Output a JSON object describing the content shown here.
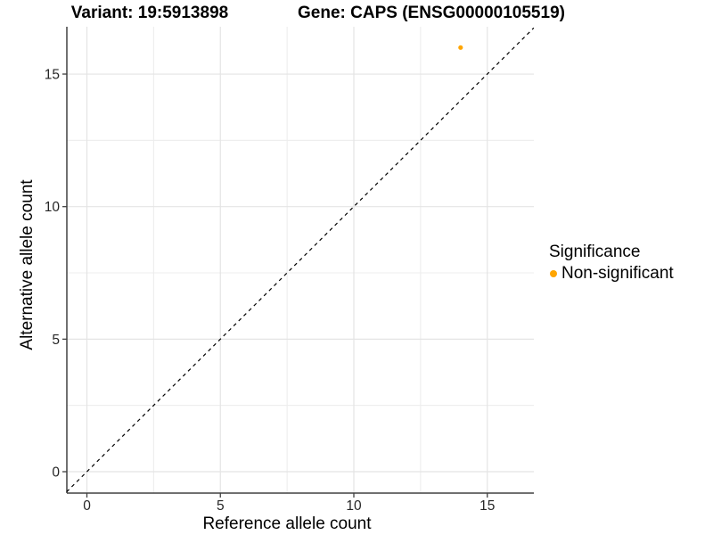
{
  "chart_data": {
    "type": "scatter",
    "titles": {
      "left": "Variant: 19:5913898",
      "right": "Gene: CAPS (ENSG00000105519)"
    },
    "xlabel": "Reference allele count",
    "ylabel": "Alternative allele count",
    "xlim": [
      -0.76,
      16.74
    ],
    "ylim": [
      -0.76,
      16.74
    ],
    "x_ticks": [
      0,
      5,
      10,
      15
    ],
    "y_ticks": [
      0,
      5,
      10,
      15
    ],
    "x_minor_gridlines": [
      2.5,
      7.5,
      12.5
    ],
    "y_minor_gridlines": [
      2.5,
      7.5,
      12.5
    ],
    "grid": true,
    "identity_line": {
      "style": "dashed",
      "color": "#000000",
      "from": [
        -0.76,
        -0.76
      ],
      "to": [
        16.74,
        16.74
      ]
    },
    "series": [
      {
        "name": "Non-significant",
        "color": "#FFA500",
        "points": [
          {
            "x": 14,
            "y": 16
          }
        ]
      }
    ],
    "legend": {
      "title": "Significance",
      "position": "right",
      "items": [
        {
          "label": "Non-significant",
          "color": "#FFA500"
        }
      ]
    }
  }
}
